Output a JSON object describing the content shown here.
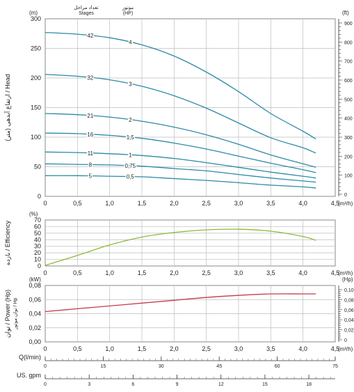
{
  "colors": {
    "head_curve": "#2b8aa6",
    "efficiency_curve": "#8fb93a",
    "power_curve": "#c83a4a",
    "grid": "#bdbdbd",
    "frame": "#8a8a8a"
  },
  "header": {
    "stages_fa": "تعداد مراحل",
    "stages_en": "Stages",
    "motor_fa": "موتور",
    "motor_en": "(HP)"
  },
  "chart_data": [
    {
      "type": "line",
      "panel": "head",
      "ylabel": "(متر) ارتفاع آبدهی / Head",
      "yunit_left": "(m)",
      "yunit_right": "(ft)",
      "xunit": "(m³/h)",
      "xlim": [
        0,
        4.5
      ],
      "ylim": [
        0,
        300
      ],
      "xticks": [
        "0",
        "0,5",
        "1,0",
        "1,5",
        "2,0",
        "2,5",
        "3,0",
        "3,5",
        "4,0",
        "4,5"
      ],
      "yticks": [
        "0",
        "50",
        "100",
        "150",
        "200",
        "250",
        "300"
      ],
      "yticks_right": [
        "0",
        "100",
        "200",
        "300",
        "400",
        "500",
        "600",
        "700",
        "800",
        "900"
      ],
      "grid": true,
      "x": [
        0,
        0.5,
        1.0,
        1.5,
        2.0,
        2.5,
        3.0,
        3.5,
        4.0,
        4.2
      ],
      "series": [
        {
          "stages": "42",
          "hp": "4",
          "values": [
            277,
            274,
            268,
            256,
            237,
            210,
            177,
            140,
            110,
            97
          ]
        },
        {
          "stages": "32",
          "hp": "3",
          "values": [
            206,
            203,
            197,
            186,
            170,
            149,
            124,
            99,
            82,
            73
          ]
        },
        {
          "stages": "21",
          "hp": "2",
          "values": [
            140,
            138,
            134,
            127,
            117,
            104,
            88,
            70,
            55,
            49
          ]
        },
        {
          "stages": "16",
          "hp": "1,5",
          "values": [
            107,
            106,
            103,
            98,
            90,
            80,
            68,
            56,
            45,
            40
          ]
        },
        {
          "stages": "11",
          "hp": "1",
          "values": [
            75,
            74,
            72,
            69,
            64,
            57,
            49,
            41,
            34,
            31
          ]
        },
        {
          "stages": "8",
          "hp": "0,75",
          "values": [
            55,
            54,
            53,
            51,
            47,
            43,
            37,
            31,
            26,
            24
          ]
        },
        {
          "stages": "5",
          "hp": "0,5",
          "values": [
            35,
            35,
            34,
            33,
            30,
            27,
            23,
            19,
            16,
            14
          ]
        }
      ]
    },
    {
      "type": "line",
      "panel": "efficiency",
      "ylabel": "بازده / Efficiency",
      "yunit_left": "(%)",
      "xunit": "(m³/h)",
      "xlim": [
        0,
        4.5
      ],
      "ylim": [
        0,
        70
      ],
      "xticks": [
        "0",
        "0,5",
        "1,0",
        "1,5",
        "2,0",
        "2,5",
        "3,0",
        "3,5",
        "4,0",
        "4,5"
      ],
      "yticks": [
        "0",
        "10",
        "20",
        "30",
        "40",
        "50",
        "60",
        "70"
      ],
      "grid": true,
      "x": [
        0,
        0.5,
        1.0,
        1.5,
        2.0,
        2.5,
        3.0,
        3.5,
        4.0,
        4.2
      ],
      "values": [
        1,
        16,
        32,
        44,
        51,
        55,
        56,
        53,
        45,
        39
      ]
    },
    {
      "type": "line",
      "panel": "power",
      "ylabel": "توان / Power (Hp)",
      "ylabel_sub": "توان موتور / Hp",
      "yunit_left": "(kW)",
      "yunit_right": "(Hp)",
      "xunit": "(m³/h)",
      "xlim": [
        0,
        4.5
      ],
      "ylim": [
        0,
        0.08
      ],
      "xticks": [
        "0",
        "0,5",
        "1,0",
        "1,5",
        "2,0",
        "2,5",
        "3,0",
        "3,5",
        "4,0",
        "4,5"
      ],
      "yticks": [
        "0,00",
        "0,02",
        "0,04",
        "0,06",
        "0,08"
      ],
      "yticks_right": [
        "0",
        "0,02",
        "0,04",
        "0,06",
        "0,08",
        "0,10"
      ],
      "grid": true,
      "x": [
        0,
        0.5,
        1.0,
        1.5,
        2.0,
        2.5,
        3.0,
        3.5,
        4.0,
        4.2
      ],
      "values": [
        0.043,
        0.047,
        0.051,
        0.055,
        0.059,
        0.063,
        0.066,
        0.068,
        0.068,
        0.068
      ]
    }
  ],
  "extra_axes": [
    {
      "label": "Q(l/min)",
      "min": 0,
      "max": 75,
      "ticks": [
        "0",
        "15",
        "30",
        "45",
        "60",
        "75"
      ]
    },
    {
      "label": "US. gpm",
      "min": 0,
      "max": 19.8,
      "ticks": [
        "0",
        "3",
        "6",
        "9",
        "12",
        "15",
        "18"
      ]
    }
  ]
}
